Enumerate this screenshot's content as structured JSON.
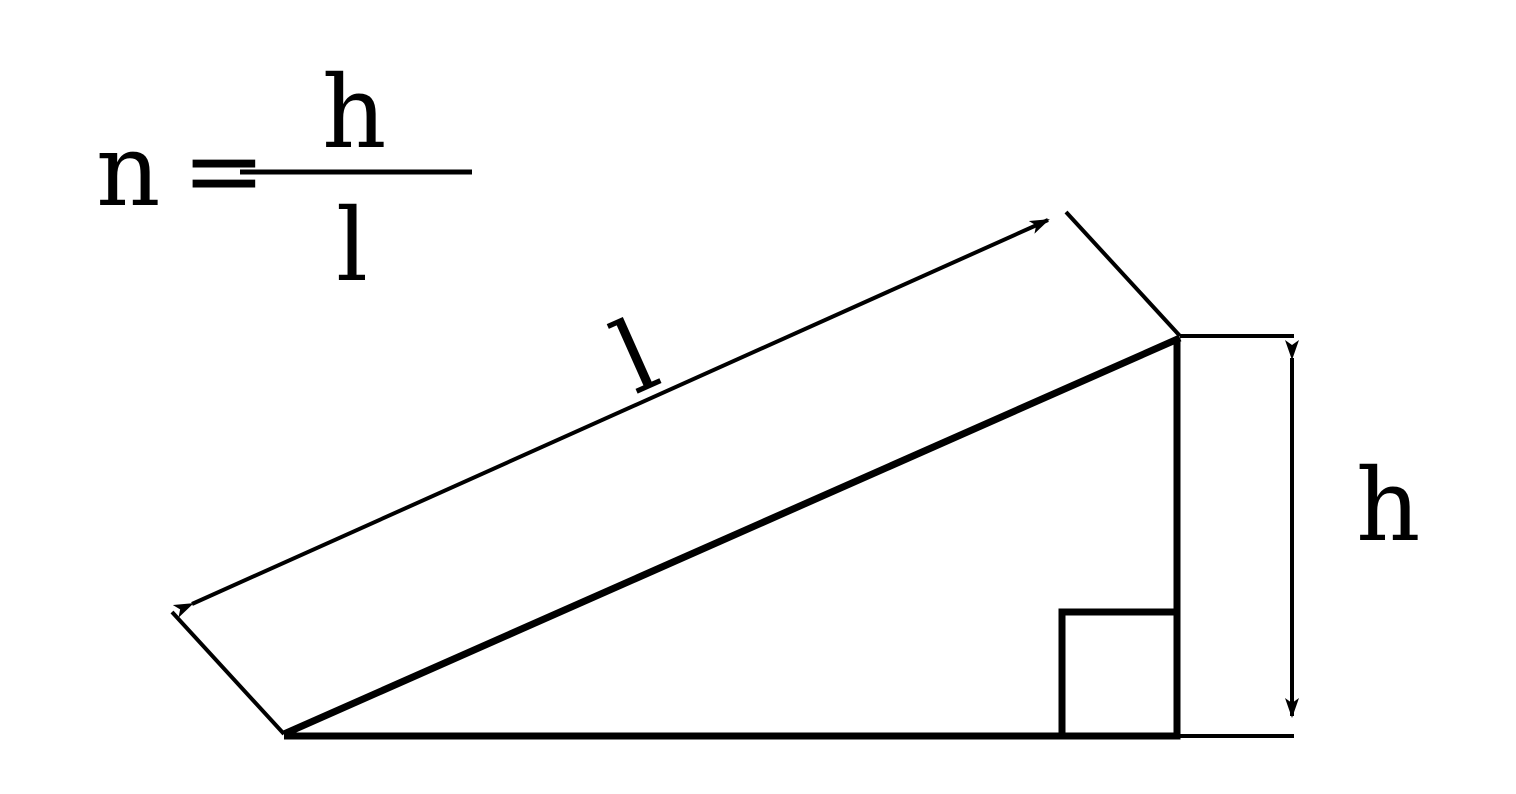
{
  "formula": {
    "lhs": "n",
    "equals": "=",
    "numerator": "h",
    "denominator": "l"
  },
  "diagram": {
    "slope_label": "l",
    "height_label": "h"
  },
  "colors": {
    "ink": "#000000",
    "background": "#ffffff"
  }
}
